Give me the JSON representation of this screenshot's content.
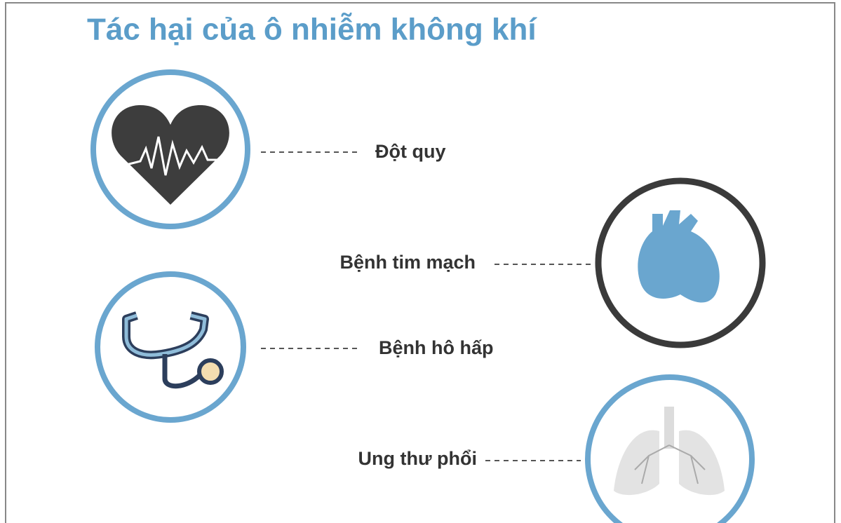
{
  "title": "Tác hại của ô nhiễm không khí",
  "items": [
    {
      "label": "Đột quy"
    },
    {
      "label": "Bệnh tim mạch"
    },
    {
      "label": "Bệnh hô hấp"
    },
    {
      "label": "Ung thư phổi"
    }
  ]
}
